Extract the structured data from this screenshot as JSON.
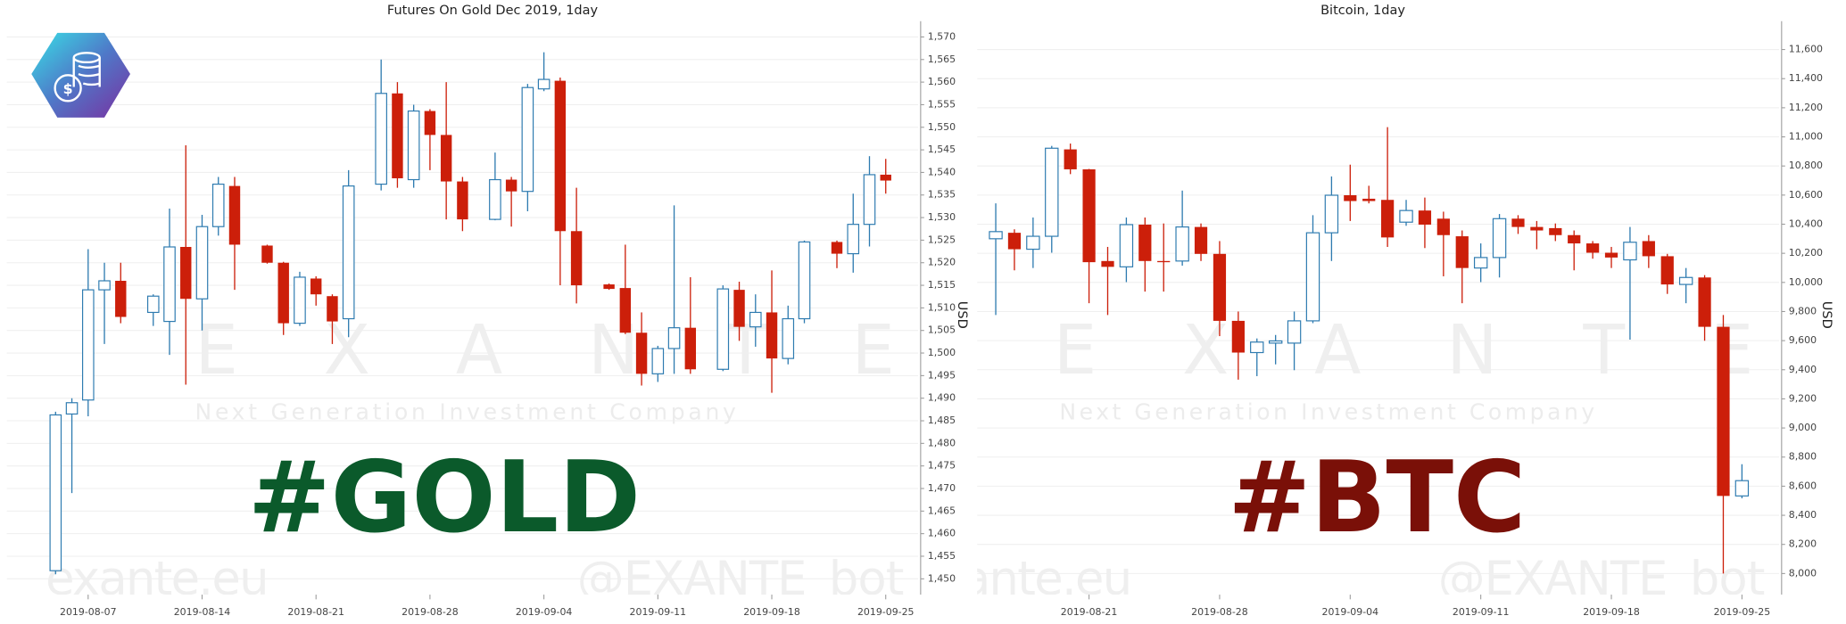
{
  "chart_data": [
    {
      "type": "candlestick",
      "title": "Futures On Gold Dec 2019, 1day",
      "y_label": "USD",
      "x": [
        "2019-08-05",
        "2019-08-06",
        "2019-08-07",
        "2019-08-08",
        "2019-08-09",
        "2019-08-11",
        "2019-08-12",
        "2019-08-13",
        "2019-08-14",
        "2019-08-15",
        "2019-08-16",
        "2019-08-18",
        "2019-08-19",
        "2019-08-20",
        "2019-08-21",
        "2019-08-22",
        "2019-08-23",
        "2019-08-25",
        "2019-08-26",
        "2019-08-27",
        "2019-08-28",
        "2019-08-29",
        "2019-08-30",
        "2019-09-01",
        "2019-09-02",
        "2019-09-03",
        "2019-09-04",
        "2019-09-05",
        "2019-09-06",
        "2019-09-08",
        "2019-09-09",
        "2019-09-10",
        "2019-09-11",
        "2019-09-12",
        "2019-09-13",
        "2019-09-15",
        "2019-09-16",
        "2019-09-17",
        "2019-09-18",
        "2019-09-19",
        "2019-09-20",
        "2019-09-22",
        "2019-09-23",
        "2019-09-24",
        "2019-09-25"
      ],
      "open": [
        1451.8,
        1486.5,
        1489.6,
        1514,
        1516,
        1509,
        1507,
        1523.5,
        1512,
        1528,
        1537,
        1523.8,
        1520,
        1506.6,
        1516.5,
        1512.6,
        1507.6,
        1537.4,
        1557.5,
        1538.4,
        1553.6,
        1548.3,
        1538,
        1529.6,
        1538.4,
        1535.8,
        1558.5,
        1560.3,
        1527,
        1515.2,
        1514.4,
        1504.5,
        1495.4,
        1501,
        1505.6,
        1496.4,
        1514,
        1505.8,
        1509,
        1498.8,
        1507.6,
        1524.6,
        1522,
        1528.5,
        1539.5
      ],
      "high": [
        1487,
        1490,
        1523,
        1520,
        1520,
        1513,
        1532,
        1546,
        1530.6,
        1539,
        1539,
        1524,
        1520.2,
        1518,
        1517,
        1513,
        1540.5,
        1565,
        1560,
        1555,
        1554,
        1560,
        1539,
        1544.4,
        1539,
        1559.6,
        1566.6,
        1561,
        1536.6,
        1515.4,
        1524,
        1509,
        1501.6,
        1532.7,
        1516.8,
        1515,
        1515.8,
        1513,
        1518.3,
        1510.5,
        1524.9,
        1524.9,
        1535.3,
        1543.6,
        1543
      ],
      "low": [
        1451,
        1469,
        1486,
        1502,
        1506.6,
        1506,
        1499.6,
        1493,
        1505,
        1526,
        1514,
        1519.8,
        1504,
        1506,
        1510.5,
        1502,
        1503.5,
        1536,
        1536.6,
        1536.6,
        1540.5,
        1529.6,
        1527,
        1529.4,
        1528,
        1531.4,
        1558,
        1515,
        1511,
        1514,
        1504.2,
        1492.8,
        1493.6,
        1495.4,
        1495.4,
        1496,
        1502.7,
        1501.4,
        1491.2,
        1497.5,
        1506.6,
        1518.8,
        1517.8,
        1523.6,
        1535.3
      ],
      "close": [
        1486.3,
        1489,
        1514,
        1516,
        1508,
        1512.6,
        1523.5,
        1512,
        1528,
        1537.4,
        1524,
        1520,
        1506.6,
        1516.8,
        1513,
        1507,
        1537,
        1557.5,
        1538.7,
        1553.6,
        1548.3,
        1538,
        1529.6,
        1538.4,
        1535.8,
        1558.8,
        1560.6,
        1527,
        1515,
        1514.2,
        1504.5,
        1495.4,
        1501,
        1505.6,
        1496.4,
        1514.2,
        1505.8,
        1509,
        1498.8,
        1507.6,
        1524.6,
        1522,
        1528.5,
        1539.5,
        1538.2
      ],
      "up_color": "#2e7bb0",
      "down_color": "#cc1f0a",
      "xlim": [
        "2019-08-02",
        "2019-09-27"
      ],
      "xticks": [
        "2019-08-07",
        "2019-08-14",
        "2019-08-21",
        "2019-08-28",
        "2019-09-04",
        "2019-09-11",
        "2019-09-18",
        "2019-09-25"
      ],
      "ylim": [
        1446.5,
        1573.5
      ],
      "yticks": [
        {
          "value": 1450,
          "label": "1,450"
        },
        {
          "value": 1455,
          "label": "1,455"
        },
        {
          "value": 1460,
          "label": "1,460"
        },
        {
          "value": 1465,
          "label": "1,465"
        },
        {
          "value": 1470,
          "label": "1,470"
        },
        {
          "value": 1475,
          "label": "1,475"
        },
        {
          "value": 1480,
          "label": "1,480"
        },
        {
          "value": 1485,
          "label": "1,485"
        },
        {
          "value": 1490,
          "label": "1,490"
        },
        {
          "value": 1495,
          "label": "1,495"
        },
        {
          "value": 1500,
          "label": "1,500"
        },
        {
          "value": 1505,
          "label": "1,505"
        },
        {
          "value": 1510,
          "label": "1,510"
        },
        {
          "value": 1515,
          "label": "1,515"
        },
        {
          "value": 1520,
          "label": "1,520"
        },
        {
          "value": 1525,
          "label": "1,525"
        },
        {
          "value": 1530,
          "label": "1,530"
        },
        {
          "value": 1535,
          "label": "1,535"
        },
        {
          "value": 1540,
          "label": "1,540"
        },
        {
          "value": 1545,
          "label": "1,545"
        },
        {
          "value": 1550,
          "label": "1,550"
        },
        {
          "value": 1555,
          "label": "1,555"
        },
        {
          "value": 1560,
          "label": "1,560"
        },
        {
          "value": 1565,
          "label": "1,565"
        },
        {
          "value": 1570,
          "label": "1,570"
        }
      ],
      "grid": true,
      "annotations": [
        {
          "text": "#GOLD",
          "color": "#0b5a2b"
        }
      ],
      "watermarks": [
        "EXANTE",
        "Next Generation Investment Company",
        "exante.eu",
        "@EXANTE_bot"
      ]
    },
    {
      "type": "candlestick",
      "title": "Bitcoin, 1day",
      "y_label": "USD",
      "x": [
        "2019-08-16",
        "2019-08-17",
        "2019-08-18",
        "2019-08-19",
        "2019-08-20",
        "2019-08-21",
        "2019-08-22",
        "2019-08-23",
        "2019-08-24",
        "2019-08-25",
        "2019-08-26",
        "2019-08-27",
        "2019-08-28",
        "2019-08-29",
        "2019-08-30",
        "2019-08-31",
        "2019-09-01",
        "2019-09-02",
        "2019-09-03",
        "2019-09-04",
        "2019-09-05",
        "2019-09-06",
        "2019-09-07",
        "2019-09-08",
        "2019-09-09",
        "2019-09-10",
        "2019-09-11",
        "2019-09-12",
        "2019-09-13",
        "2019-09-14",
        "2019-09-15",
        "2019-09-16",
        "2019-09-17",
        "2019-09-18",
        "2019-09-19",
        "2019-09-20",
        "2019-09-21",
        "2019-09-22",
        "2019-09-23",
        "2019-09-24",
        "2019-09-25"
      ],
      "open": [
        10300,
        10341,
        10228,
        10317,
        10914,
        10777,
        10147,
        10107,
        10397,
        10147,
        10147,
        10381,
        10196,
        9736,
        9518,
        9583,
        9583,
        9736,
        10341,
        10599,
        10575,
        10567,
        10414,
        10494,
        10438,
        10317,
        10099,
        10171,
        10438,
        10381,
        10373,
        10325,
        10268,
        10204,
        10155,
        10284,
        10180,
        9986,
        10034,
        9695,
        8533
      ],
      "high": [
        10543,
        10365,
        10446,
        10938,
        10954,
        10780,
        10244,
        10446,
        10446,
        10405,
        10631,
        10405,
        10284,
        9800,
        9615,
        9639,
        9800,
        10462,
        10728,
        10809,
        10664,
        11067,
        10567,
        10583,
        10486,
        10357,
        10268,
        10470,
        10462,
        10422,
        10405,
        10357,
        10284,
        10244,
        10381,
        10325,
        10196,
        10099,
        10050,
        9776,
        8751
      ],
      "low": [
        9776,
        10083,
        10099,
        10204,
        10744,
        9857,
        9776,
        10002,
        9937,
        9937,
        10115,
        10147,
        9631,
        9332,
        9356,
        9437,
        9397,
        9720,
        10147,
        10422,
        10543,
        10244,
        10389,
        10236,
        10042,
        9857,
        10002,
        10034,
        10333,
        10228,
        10284,
        10083,
        10163,
        10099,
        9607,
        10099,
        9921,
        9857,
        9599,
        8000,
        8517
      ],
      "close": [
        10349,
        10228,
        10317,
        10922,
        10777,
        10139,
        10107,
        10397,
        10147,
        10139,
        10381,
        10196,
        9736,
        9518,
        9590,
        9598,
        9736,
        10341,
        10599,
        10559,
        10559,
        10309,
        10494,
        10397,
        10325,
        10099,
        10171,
        10438,
        10381,
        10357,
        10325,
        10268,
        10204,
        10171,
        10276,
        10180,
        9986,
        10034,
        9695,
        8533,
        8638
      ],
      "up_color": "#2e7bb0",
      "down_color": "#cc1f0a",
      "xlim": [
        "2019-08-15",
        "2019-09-27"
      ],
      "xticks": [
        "2019-08-21",
        "2019-08-28",
        "2019-09-04",
        "2019-09-11",
        "2019-09-18",
        "2019-09-25"
      ],
      "ylim": [
        7855,
        11795
      ],
      "yticks": [
        {
          "value": 8000,
          "label": "8,000"
        },
        {
          "value": 8200,
          "label": "8,200"
        },
        {
          "value": 8400,
          "label": "8,400"
        },
        {
          "value": 8600,
          "label": "8,600"
        },
        {
          "value": 8800,
          "label": "8,800"
        },
        {
          "value": 9000,
          "label": "9,000"
        },
        {
          "value": 9200,
          "label": "9,200"
        },
        {
          "value": 9400,
          "label": "9,400"
        },
        {
          "value": 9600,
          "label": "9,600"
        },
        {
          "value": 9800,
          "label": "9,800"
        },
        {
          "value": 10000,
          "label": "10,000"
        },
        {
          "value": 10200,
          "label": "10,200"
        },
        {
          "value": 10400,
          "label": "10,400"
        },
        {
          "value": 10600,
          "label": "10,600"
        },
        {
          "value": 10800,
          "label": "10,800"
        },
        {
          "value": 11000,
          "label": "11,000"
        },
        {
          "value": 11200,
          "label": "11,200"
        },
        {
          "value": 11400,
          "label": "11,400"
        },
        {
          "value": 11600,
          "label": "11,600"
        }
      ],
      "grid": true,
      "annotations": [
        {
          "text": "#BTC",
          "color": "#7a1008"
        }
      ],
      "watermarks": [
        "EXANTE",
        "Next Generation Investment Company",
        "exante.eu",
        "@EXANTE_bot"
      ]
    }
  ]
}
